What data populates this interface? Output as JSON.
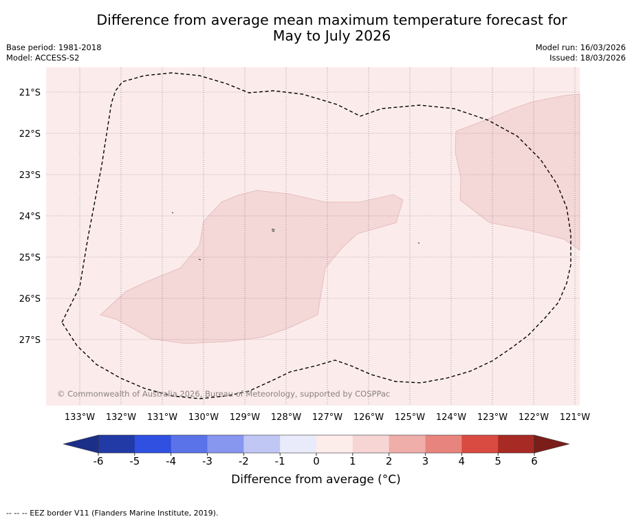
{
  "title": {
    "line1": "Difference from average mean maximum temperature forecast for",
    "line2": "May to July 2026"
  },
  "meta": {
    "base_period": "Base period: 1981-2018",
    "model": "Model: ACCESS-S2",
    "model_run": "Model run: 16/03/2026",
    "issued": "Issued: 18/03/2026"
  },
  "map": {
    "latitude_labels": [
      "21°S",
      "22°S",
      "23°S",
      "24°S",
      "25°S",
      "26°S",
      "27°S"
    ],
    "longitude_labels": [
      "133°W",
      "132°W",
      "131°W",
      "130°W",
      "129°W",
      "128°W",
      "127°W",
      "126°W",
      "125°W",
      "124°W",
      "123°W",
      "122°W",
      "121°W"
    ],
    "copyright": "© Commonwealth of Australia 2026, Bureau of Meteorology, supported by COSPPac",
    "background_color": "#fbeceb",
    "region_color": "#f4d7d7"
  },
  "colorbar": {
    "ticks": [
      "-6",
      "-5",
      "-4",
      "-3",
      "-2",
      "-1",
      "0",
      "1",
      "2",
      "3",
      "4",
      "5",
      "6"
    ],
    "colors": [
      "#223aa6",
      "#2f50e0",
      "#5a73e8",
      "#8796ee",
      "#c0c7f5",
      "#e9ebfb",
      "#fcecea",
      "#f6d5d4",
      "#efaeaa",
      "#e8847e",
      "#d94a40",
      "#a82a24"
    ],
    "under_color": "#1c2f88",
    "over_color": "#7b1d19",
    "label": "Difference from average (°C)"
  },
  "legend_note": "-- -- -- EEZ border V11 (Flanders Marine Institute, 2019)."
}
